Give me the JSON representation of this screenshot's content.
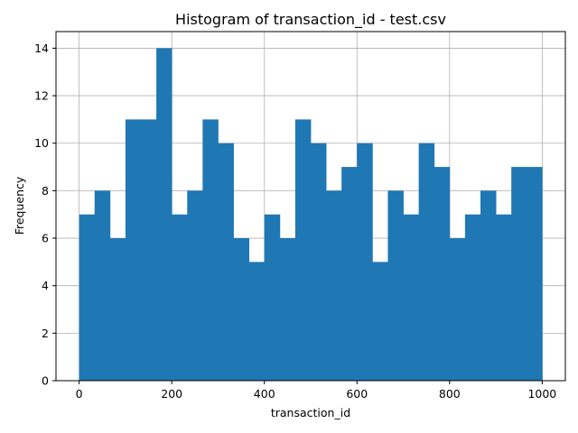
{
  "chart_data": {
    "type": "bar",
    "title": "Histogram of transaction_id - test.csv",
    "xlabel": "transaction_id",
    "ylabel": "Frequency",
    "xlim": [
      -50,
      1050
    ],
    "ylim": [
      0,
      14.7
    ],
    "bin_start": 0,
    "bin_end": 1000,
    "bins": 30,
    "values": [
      7,
      8,
      6,
      11,
      11,
      14,
      7,
      8,
      11,
      10,
      6,
      5,
      7,
      6,
      11,
      10,
      8,
      9,
      10,
      5,
      8,
      7,
      10,
      9,
      6,
      7,
      8,
      7,
      9,
      9
    ],
    "xticks": [
      0,
      200,
      400,
      600,
      800,
      1000
    ],
    "yticks": [
      0,
      2,
      4,
      6,
      8,
      10,
      12,
      14
    ],
    "bar_color": "#1f77b4",
    "grid": true
  }
}
